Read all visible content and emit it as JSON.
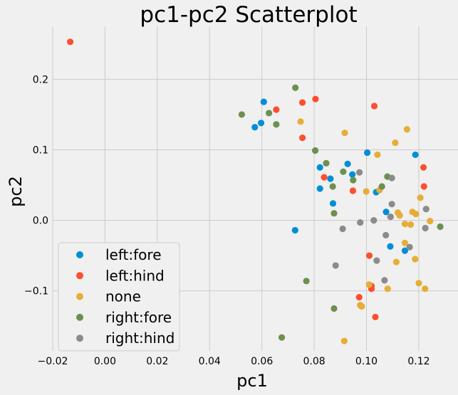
{
  "chart_data": {
    "type": "scatter",
    "title": "pc1-pc2 Scatterplot",
    "xlabel": "pc1",
    "ylabel": "pc2",
    "xlim": [
      -0.02,
      0.135
    ],
    "ylim": [
      -0.185,
      0.275
    ],
    "xticks": [
      -0.02,
      0.0,
      0.02,
      0.04,
      0.06,
      0.08,
      0.1,
      0.12
    ],
    "xtick_labels": [
      "−0.02",
      "0.00",
      "0.02",
      "0.04",
      "0.06",
      "0.08",
      "0.10",
      "0.12"
    ],
    "yticks": [
      -0.1,
      0.0,
      0.1,
      0.2
    ],
    "ytick_labels": [
      "−0.1",
      "0.0",
      "0.1",
      "0.2"
    ],
    "grid": true,
    "legend_position": "lower-left",
    "series": [
      {
        "name": "left:fore",
        "color": "#008fd5",
        "points": [
          [
            0.0607,
            0.168
          ],
          [
            0.0573,
            0.132
          ],
          [
            0.0597,
            0.138
          ],
          [
            0.0822,
            0.075
          ],
          [
            0.0822,
            0.045
          ],
          [
            0.0862,
            0.059
          ],
          [
            0.0872,
            0.024
          ],
          [
            0.0928,
            0.08
          ],
          [
            0.0946,
            0.065
          ],
          [
            0.1003,
            0.096
          ],
          [
            0.1037,
            0.04
          ],
          [
            0.1075,
            0.012
          ],
          [
            0.1091,
            -0.037
          ],
          [
            0.1147,
            -0.043
          ],
          [
            0.1187,
            0.093
          ],
          [
            0.0727,
            -0.014
          ]
        ]
      },
      {
        "name": "left:hind",
        "color": "#fc4f30",
        "points": [
          [
            -0.0133,
            0.253
          ],
          [
            0.0655,
            0.157
          ],
          [
            0.0755,
            0.167
          ],
          [
            0.0805,
            0.172
          ],
          [
            0.0755,
            0.117
          ],
          [
            0.0838,
            0.061
          ],
          [
            0.0948,
            0.042
          ],
          [
            0.103,
            0.162
          ],
          [
            0.1218,
            0.075
          ],
          [
            0.122,
            0.048
          ],
          [
            0.1011,
            -0.05
          ],
          [
            0.1019,
            -0.093
          ],
          [
            0.1019,
            -0.097
          ],
          [
            0.0972,
            -0.109
          ],
          [
            0.0978,
            -0.121
          ],
          [
            0.1034,
            -0.137
          ]
        ]
      },
      {
        "name": "none",
        "color": "#e5ae38",
        "points": [
          [
            0.0748,
            0.14
          ],
          [
            0.0917,
            0.124
          ],
          [
            0.1042,
            0.093
          ],
          [
            0.111,
            0.11
          ],
          [
            0.1155,
            0.129
          ],
          [
            0.0999,
            0.041
          ],
          [
            0.105,
            0.043
          ],
          [
            0.112,
            0.011
          ],
          [
            0.1127,
            0.007
          ],
          [
            0.1147,
            -0.005
          ],
          [
            0.1169,
            -0.006
          ],
          [
            0.1176,
            0.012
          ],
          [
            0.1189,
            0.009
          ],
          [
            0.1206,
            0.032
          ],
          [
            0.1243,
            -0.001
          ],
          [
            0.1147,
            -0.032
          ],
          [
            0.1186,
            -0.055
          ],
          [
            0.1114,
            -0.059
          ],
          [
            0.101,
            -0.091
          ],
          [
            0.1081,
            -0.097
          ],
          [
            0.12,
            -0.089
          ],
          [
            0.1224,
            -0.097
          ],
          [
            0.0976,
            -0.12
          ],
          [
            0.0982,
            -0.122
          ],
          [
            0.0915,
            -0.171
          ]
        ]
      },
      {
        "name": "right:fore",
        "color": "#6d904f",
        "points": [
          [
            0.0523,
            0.15
          ],
          [
            0.0627,
            0.152
          ],
          [
            0.0655,
            0.136
          ],
          [
            0.0728,
            0.188
          ],
          [
            0.0804,
            0.099
          ],
          [
            0.0846,
            0.081
          ],
          [
            0.0871,
            0.048
          ],
          [
            0.0876,
            0.01
          ],
          [
            0.0911,
            0.069
          ],
          [
            0.0949,
            0.057
          ],
          [
            0.1059,
            0.048
          ],
          [
            0.108,
            0.062
          ],
          [
            0.1282,
            -0.009
          ],
          [
            0.077,
            -0.086
          ],
          [
            0.0876,
            -0.125
          ],
          [
            0.0676,
            -0.166
          ]
        ]
      },
      {
        "name": "right:hind",
        "color": "#8b8b8b",
        "points": [
          [
            0.0973,
            0.068
          ],
          [
            0.1097,
            0.06
          ],
          [
            0.1097,
            0.023
          ],
          [
            0.1092,
            0.005
          ],
          [
            0.1028,
            0.0
          ],
          [
            0.0976,
            -0.003
          ],
          [
            0.0909,
            -0.012
          ],
          [
            0.1074,
            -0.021
          ],
          [
            0.1039,
            -0.057
          ],
          [
            0.1228,
            0.016
          ],
          [
            0.1225,
            -0.011
          ],
          [
            0.1165,
            -0.038
          ],
          [
            0.0882,
            -0.064
          ],
          [
            0.1069,
            -0.085
          ]
        ]
      }
    ]
  }
}
